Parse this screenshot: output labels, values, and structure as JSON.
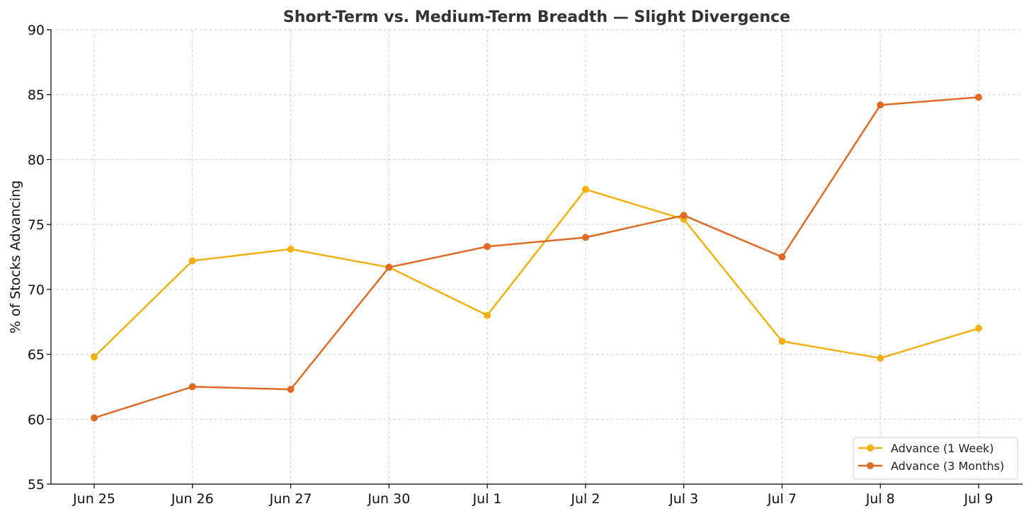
{
  "chart_data": {
    "type": "line",
    "title": "Short-Term vs. Medium-Term Breadth — Slight Divergence",
    "xlabel": "",
    "ylabel": "% of Stocks Advancing",
    "categories": [
      "Jun 25",
      "Jun 26",
      "Jun 27",
      "Jun 30",
      "Jul 1",
      "Jul 2",
      "Jul 3",
      "Jul 7",
      "Jul 8",
      "Jul 9"
    ],
    "ylim": [
      55,
      90
    ],
    "yticks": [
      55,
      60,
      65,
      70,
      75,
      80,
      85,
      90
    ],
    "grid": true,
    "legend_position": "lower-right",
    "series": [
      {
        "name": "Advance (1 Week)",
        "color": "#f0b010",
        "values": [
          64.8,
          72.2,
          73.1,
          71.7,
          68.0,
          77.7,
          75.4,
          66.0,
          64.7,
          67.0
        ]
      },
      {
        "name": "Advance (3 Months)",
        "color": "#e06a25",
        "values": [
          60.1,
          62.5,
          62.3,
          71.7,
          73.3,
          74.0,
          75.7,
          72.5,
          84.2,
          84.8
        ]
      }
    ]
  }
}
